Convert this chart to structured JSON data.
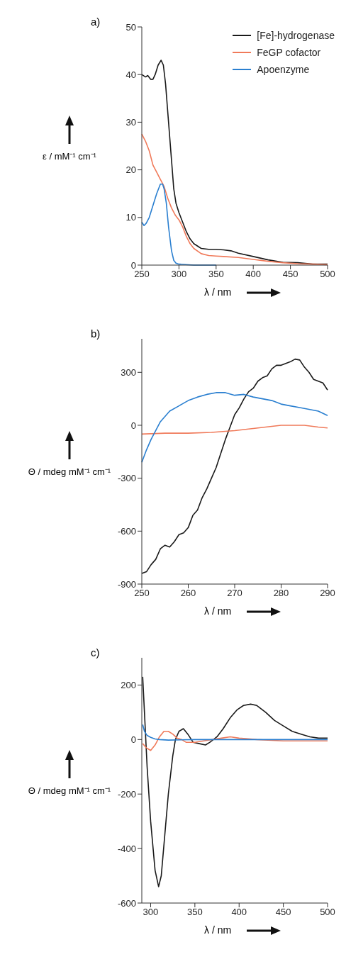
{
  "chart_data": [
    {
      "type": "line",
      "title": "a)",
      "xlabel": "λ / nm",
      "ylabel": "ε / mM⁻¹ cm⁻¹",
      "xlim": [
        250,
        500
      ],
      "xticks": [
        250,
        300,
        350,
        400,
        450,
        500
      ],
      "ylim": [
        0,
        50
      ],
      "yticks": [
        0,
        10,
        20,
        30,
        40,
        50
      ],
      "legend": "top right",
      "series": [
        {
          "name": "[Fe]-hydrogenase",
          "color": "#1a1a1a",
          "x": [
            250,
            255,
            258,
            262,
            265,
            268,
            272,
            276,
            279,
            282,
            285,
            290,
            293,
            296,
            300,
            305,
            310,
            315,
            320,
            330,
            340,
            350,
            360,
            370,
            380,
            400,
            420,
            440,
            460,
            480,
            500
          ],
          "values": [
            40,
            39.5,
            39.8,
            39,
            39,
            40,
            42,
            43,
            42,
            38,
            32,
            22,
            16,
            13,
            11,
            9,
            7,
            5.5,
            4.5,
            3.5,
            3.3,
            3.3,
            3.2,
            3,
            2.5,
            1.8,
            1.1,
            0.6,
            0.5,
            0.2,
            0.2
          ]
        },
        {
          "name": "FeGP cofactor",
          "color": "#f07a5a",
          "x": [
            250,
            255,
            260,
            265,
            270,
            275,
            280,
            285,
            290,
            295,
            300,
            305,
            310,
            315,
            320,
            330,
            340,
            350,
            360,
            380,
            400,
            420,
            440,
            460,
            480,
            500
          ],
          "values": [
            27.5,
            26,
            24,
            21,
            19.5,
            18,
            16.5,
            14,
            12,
            10.5,
            9.5,
            8,
            6,
            4.5,
            3.5,
            2.4,
            2,
            1.9,
            1.8,
            1.6,
            1.2,
            0.8,
            0.5,
            0.3,
            0.2,
            0.1
          ]
        },
        {
          "name": "Apoenzyme",
          "color": "#2a7fd0",
          "x": [
            250,
            253,
            256,
            260,
            265,
            270,
            275,
            278,
            280,
            283,
            286,
            290,
            293,
            296,
            300,
            320,
            350
          ],
          "values": [
            9,
            8.3,
            8.8,
            10,
            12.5,
            15,
            17,
            17,
            16,
            13,
            8,
            3,
            1,
            0.4,
            0.2,
            0,
            0
          ]
        }
      ]
    },
    {
      "type": "line",
      "title": "b)",
      "xlabel": "λ / nm",
      "ylabel": "Θ / mdeg mM⁻¹ cm⁻¹",
      "xlim": [
        250,
        290
      ],
      "xticks": [
        250,
        260,
        270,
        280,
        290
      ],
      "ylim": [
        -900,
        490
      ],
      "yticks": [
        -900,
        -600,
        -300,
        0,
        300
      ],
      "series": [
        {
          "color": "#1a1a1a",
          "x": [
            250,
            251,
            252,
            253,
            254,
            255,
            256,
            257,
            258,
            259,
            260,
            261,
            262,
            263,
            264,
            265,
            266,
            267,
            268,
            269,
            270,
            271,
            272,
            273,
            274,
            275,
            276,
            277,
            278,
            279,
            280,
            281,
            282,
            283,
            284,
            285,
            286,
            287,
            288,
            289,
            290
          ],
          "values": [
            -840,
            -830,
            -790,
            -760,
            -700,
            -680,
            -690,
            -660,
            -620,
            -610,
            -580,
            -510,
            -480,
            -410,
            -360,
            -300,
            -240,
            -160,
            -80,
            -10,
            60,
            100,
            150,
            190,
            210,
            250,
            270,
            280,
            320,
            340,
            340,
            350,
            360,
            375,
            370,
            330,
            300,
            260,
            250,
            240,
            200
          ]
        },
        {
          "color": "#f07a5a",
          "x": [
            250,
            255,
            260,
            265,
            270,
            275,
            280,
            282,
            285,
            288,
            290
          ],
          "values": [
            -50,
            -45,
            -45,
            -40,
            -30,
            -15,
            0,
            0,
            0,
            -10,
            -15
          ]
        },
        {
          "color": "#2a7fd0",
          "x": [
            250,
            251,
            252,
            253,
            254,
            255,
            256,
            258,
            260,
            262,
            264,
            266,
            268,
            270,
            272,
            274,
            276,
            278,
            280,
            282,
            284,
            286,
            288,
            290
          ],
          "values": [
            -210,
            -140,
            -80,
            -30,
            20,
            50,
            80,
            110,
            140,
            160,
            175,
            185,
            185,
            170,
            175,
            160,
            150,
            140,
            120,
            110,
            100,
            90,
            80,
            55
          ]
        }
      ]
    },
    {
      "type": "line",
      "title": "c)",
      "xlabel": "λ / nm",
      "ylabel": "Θ / mdeg mM⁻¹ cm⁻¹",
      "xlim": [
        290,
        500
      ],
      "xticks": [
        300,
        350,
        400,
        450,
        500
      ],
      "ylim": [
        -600,
        300
      ],
      "yticks": [
        -600,
        -400,
        -200,
        0,
        200
      ],
      "series": [
        {
          "color": "#1a1a1a",
          "x": [
            291,
            293,
            296,
            300,
            305,
            309,
            312,
            316,
            320,
            325,
            328,
            332,
            337,
            342,
            348,
            355,
            362,
            367,
            375,
            382,
            390,
            398,
            405,
            413,
            420,
            430,
            440,
            450,
            460,
            470,
            480,
            490,
            500
          ],
          "values": [
            230,
            100,
            -100,
            -300,
            -480,
            -540,
            -500,
            -350,
            -200,
            -60,
            0,
            30,
            40,
            20,
            -10,
            -15,
            -20,
            -10,
            10,
            40,
            80,
            110,
            125,
            130,
            125,
            100,
            70,
            50,
            30,
            20,
            10,
            5,
            5
          ]
        },
        {
          "color": "#f07a5a",
          "x": [
            291,
            295,
            300,
            305,
            310,
            315,
            320,
            325,
            330,
            335,
            340,
            350,
            360,
            370,
            380,
            390,
            400,
            420,
            450,
            500
          ],
          "values": [
            -15,
            -30,
            -40,
            -20,
            10,
            30,
            30,
            20,
            5,
            0,
            -10,
            -10,
            -5,
            0,
            5,
            10,
            5,
            0,
            -5,
            -5
          ]
        },
        {
          "color": "#2a7fd0",
          "x": [
            291,
            293,
            296,
            300,
            305,
            310,
            320,
            350,
            400,
            500
          ],
          "values": [
            55,
            30,
            15,
            8,
            2,
            0,
            -2,
            0,
            0,
            0
          ]
        }
      ]
    }
  ]
}
